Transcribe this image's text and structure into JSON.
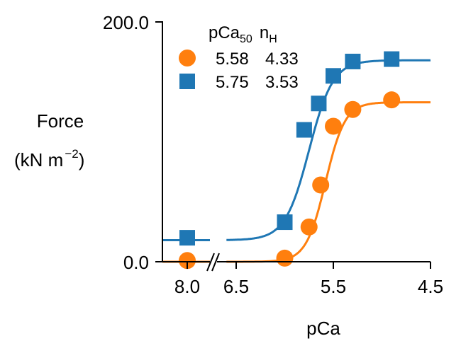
{
  "chart_data": {
    "type": "scatter",
    "title": "",
    "xlabel": "pCa",
    "ylabel_line1": "Force",
    "ylabel_line2": "(kN m",
    "ylabel_exp": "−2",
    "ylabel_close": ")",
    "ylim": [
      0,
      200
    ],
    "y_ticks": [
      "0.0",
      "200.0"
    ],
    "x_ticks": [
      {
        "label": "8.0",
        "value": 8.0
      },
      {
        "label": "6.5",
        "value": 6.5
      },
      {
        "label": "5.5",
        "value": 5.5
      },
      {
        "label": "4.5",
        "value": 4.5
      }
    ],
    "x_axis_break": true,
    "x_axis_reversed": true,
    "legend": {
      "header_pca": "pCa",
      "header_pca_sub": "50",
      "header_n": "n",
      "header_n_sub": "H",
      "placement": "top-left"
    },
    "series": [
      {
        "marker": "circle",
        "color": "#ff7f0e",
        "pCa50": "5.58",
        "nH": "4.33",
        "fit": {
          "pCa50": 5.58,
          "nH": 4.33,
          "min": 0,
          "max": 133
        },
        "points": [
          {
            "x": 8.0,
            "y": 1
          },
          {
            "x": 6.0,
            "y": 3
          },
          {
            "x": 5.75,
            "y": 29
          },
          {
            "x": 5.63,
            "y": 64
          },
          {
            "x": 5.5,
            "y": 113
          },
          {
            "x": 5.3,
            "y": 127
          },
          {
            "x": 4.9,
            "y": 135
          }
        ]
      },
      {
        "marker": "square",
        "color": "#1f77b4",
        "pCa50": "5.75",
        "nH": "3.53",
        "fit": {
          "pCa50": 5.75,
          "nH": 3.53,
          "min": 18,
          "max": 168
        },
        "points": [
          {
            "x": 8.0,
            "y": 20
          },
          {
            "x": 6.0,
            "y": 33
          },
          {
            "x": 5.8,
            "y": 110
          },
          {
            "x": 5.65,
            "y": 132
          },
          {
            "x": 5.5,
            "y": 155
          },
          {
            "x": 5.3,
            "y": 167
          },
          {
            "x": 4.9,
            "y": 169
          }
        ]
      }
    ]
  }
}
